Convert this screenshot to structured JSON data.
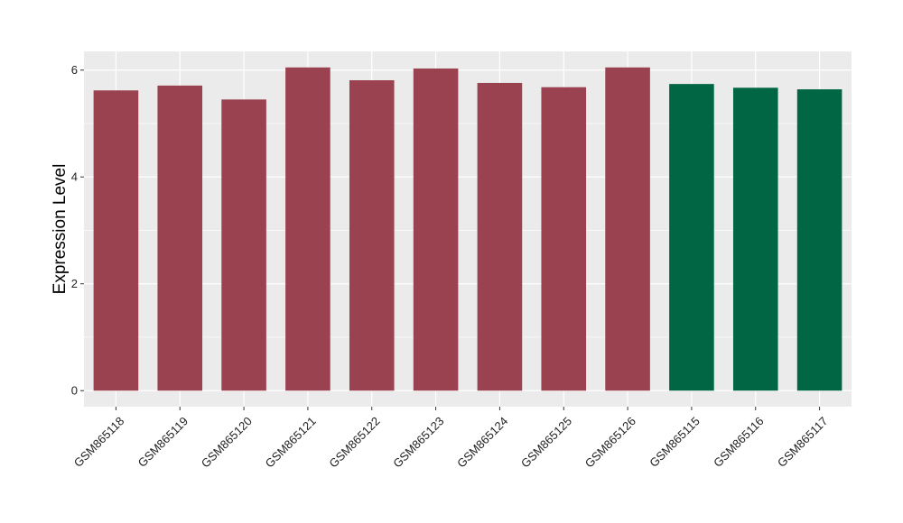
{
  "chart_data": {
    "type": "bar",
    "title": "",
    "xlabel": "",
    "ylabel": "Expression Level",
    "ylim": [
      -0.3,
      6.35
    ],
    "yticks": [
      0,
      2,
      4,
      6
    ],
    "grid": true,
    "legend": "none",
    "categories": [
      "GSM865118",
      "GSM865119",
      "GSM865120",
      "GSM865121",
      "GSM865122",
      "GSM865123",
      "GSM865124",
      "GSM865125",
      "GSM865126",
      "GSM865115",
      "GSM865116",
      "GSM865117"
    ],
    "values": [
      5.62,
      5.71,
      5.45,
      6.05,
      5.81,
      6.03,
      5.76,
      5.68,
      6.05,
      5.74,
      5.67,
      5.64
    ],
    "bar_colors": [
      "#9a4250",
      "#9a4250",
      "#9a4250",
      "#9a4250",
      "#9a4250",
      "#9a4250",
      "#9a4250",
      "#9a4250",
      "#9a4250",
      "#006644",
      "#006644",
      "#006644"
    ]
  },
  "colors": {
    "panel_background": "#ebebeb",
    "grid": "#ffffff"
  }
}
